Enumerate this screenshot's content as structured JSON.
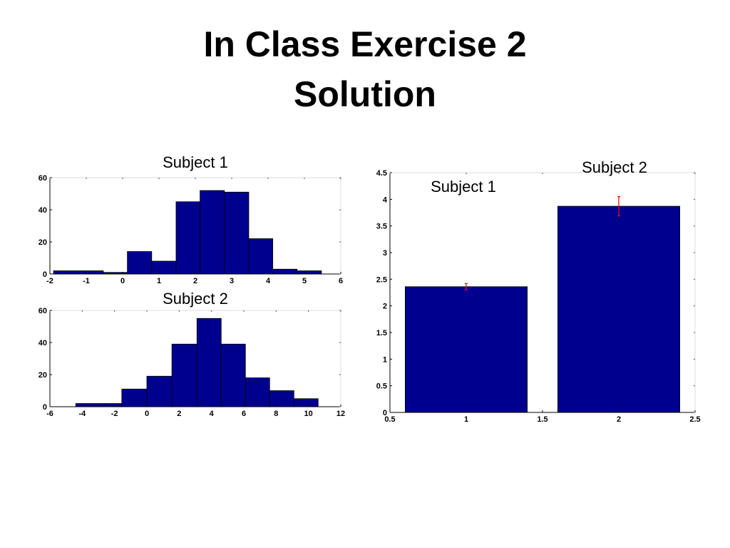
{
  "slide": {
    "title_line1": "In Class Exercise 2",
    "title_line2": "Solution"
  },
  "colors": {
    "bar": "#00008f",
    "error": "#ff0000",
    "axis": "#000000"
  },
  "chart_data": [
    {
      "type": "bar",
      "title": "Subject 1",
      "bin_edges": [
        -1.9,
        -0.53,
        0.13,
        0.8,
        1.47,
        2.13,
        2.8,
        3.47,
        4.13,
        4.8,
        5.47
      ],
      "bin_edges_note": "",
      "values": [
        2,
        1,
        14,
        8,
        45,
        52,
        51,
        22,
        3,
        2
      ],
      "xlim": [
        -2,
        6
      ],
      "ylim": [
        0,
        60
      ],
      "xticks": [
        -2,
        -1,
        0,
        1,
        2,
        3,
        4,
        5,
        6
      ],
      "yticks": [
        0,
        20,
        40,
        60
      ],
      "grid": false
    },
    {
      "type": "bar",
      "title": "Subject 2",
      "bin_edges": [
        -4.4,
        -2.55,
        -1.55,
        0,
        1.55,
        3.1,
        4.6,
        6.1,
        7.6,
        9.1,
        10.6
      ],
      "values": [
        2,
        2,
        11,
        19,
        39,
        55,
        39,
        18,
        10,
        5
      ],
      "xlim": [
        -6,
        12
      ],
      "ylim": [
        0,
        60
      ],
      "xticks": [
        -6,
        -4,
        -2,
        0,
        2,
        4,
        6,
        8,
        10,
        12
      ],
      "yticks": [
        0,
        20,
        40,
        60
      ],
      "grid": false
    },
    {
      "type": "bar",
      "title": "",
      "categories": [
        "Subject 1",
        "Subject 2"
      ],
      "x": [
        1,
        2
      ],
      "values": [
        2.36,
        3.87
      ],
      "error": [
        0.06,
        0.18
      ],
      "bar_width": 0.8,
      "xlim": [
        0.5,
        2.5
      ],
      "ylim": [
        0,
        4.5
      ],
      "xticks": [
        0.5,
        1,
        1.5,
        2,
        2.5
      ],
      "yticks": [
        0,
        0.5,
        1,
        1.5,
        2,
        2.5,
        3,
        3.5,
        4,
        4.5
      ],
      "annotations": [
        "Subject 1",
        "Subject 2"
      ],
      "grid": false
    }
  ]
}
